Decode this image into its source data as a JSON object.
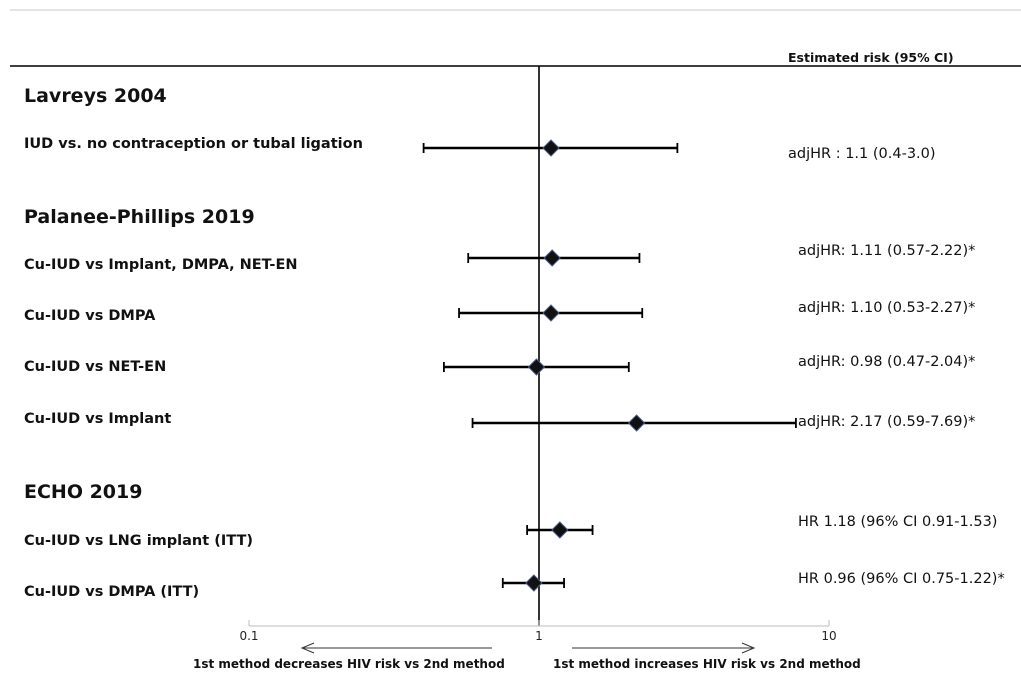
{
  "chart_data": {
    "type": "forest",
    "header": "Estimated risk (95% CI)",
    "x_scale": "log",
    "x_ticks": [
      "0.1",
      "1",
      "10"
    ],
    "x_range": [
      0.1,
      10
    ],
    "reference_line": 1,
    "left_note": "1st method decreases HIV risk vs 2nd method",
    "right_note": "1st method increases HIV risk vs 2nd method",
    "groups": [
      {
        "study": "Lavreys 2004",
        "rows": [
          {
            "label": "IUD vs. no contraception or tubal ligation",
            "est": 1.1,
            "lo": 0.4,
            "hi": 3.0,
            "text": "adjHR : 1.1 (0.4-3.0)"
          }
        ]
      },
      {
        "study": "Palanee-Phillips 2019",
        "rows": [
          {
            "label": "Cu-IUD vs Implant, DMPA, NET-EN",
            "est": 1.11,
            "lo": 0.57,
            "hi": 2.22,
            "text": "adjHR: 1.11 (0.57-2.22)*"
          },
          {
            "label": "Cu-IUD vs DMPA",
            "est": 1.1,
            "lo": 0.53,
            "hi": 2.27,
            "text": "adjHR: 1.10 (0.53-2.27)*"
          },
          {
            "label": "Cu-IUD vs NET-EN",
            "est": 0.98,
            "lo": 0.47,
            "hi": 2.04,
            "text": "adjHR: 0.98 (0.47-2.04)*"
          },
          {
            "label": "Cu-IUD vs Implant",
            "est": 2.17,
            "lo": 0.59,
            "hi": 7.69,
            "text": "adjHR: 2.17 (0.59-7.69)*"
          }
        ]
      },
      {
        "study": "ECHO 2019",
        "rows": [
          {
            "label": "Cu-IUD vs LNG implant (ITT)",
            "est": 1.18,
            "lo": 0.91,
            "hi": 1.53,
            "text": "HR 1.18 (96% CI 0.91-1.53)"
          },
          {
            "label": "Cu-IUD vs DMPA (ITT)",
            "est": 0.96,
            "lo": 0.75,
            "hi": 1.22,
            "text": "HR 0.96 (96% CI 0.75-1.22)*"
          }
        ]
      }
    ]
  }
}
